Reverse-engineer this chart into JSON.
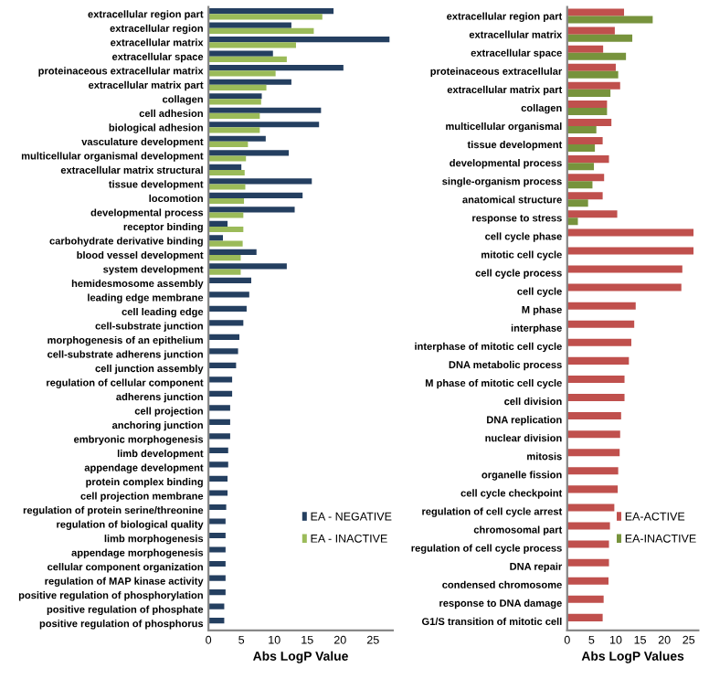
{
  "chart_data": [
    {
      "type": "bar",
      "orientation": "horizontal",
      "xlabel": "Abs LogP Value",
      "xlim": [
        0,
        28
      ],
      "xticks": [
        0,
        5,
        10,
        15,
        20,
        25
      ],
      "grid": false,
      "legend": "bottom right",
      "categories": [
        "extracellular region part",
        "extracellular region",
        "extracellular matrix",
        "extracellular space",
        "proteinaceous extracellular matrix",
        "extracellular matrix part",
        "collagen",
        "cell adhesion",
        "biological adhesion",
        "vasculature development",
        "multicellular organismal development",
        "extracellular matrix structural",
        "tissue development",
        "locomotion",
        "developmental process",
        "receptor binding",
        "carbohydrate derivative binding",
        "blood vessel development",
        "system development",
        "hemidesmosome assembly",
        "leading edge membrane",
        "cell leading edge",
        "cell-substrate junction",
        "morphogenesis of an epithelium",
        "cell-substrate adherens junction",
        "cell junction assembly",
        "regulation of cellular component",
        "adherens junction",
        "cell projection",
        "anchoring junction",
        "embryonic morphogenesis",
        "limb development",
        "appendage development",
        "protein complex binding",
        "cell projection membrane",
        "regulation of protein serine/threonine",
        "regulation of biological quality",
        "limb morphogenesis",
        "appendage morphogenesis",
        "cellular component organization",
        "regulation of MAP kinase activity",
        "positive regulation of phosphorylation",
        "positive regulation of phosphate",
        "positive regulation of phosphorus"
      ],
      "series": [
        {
          "name": "EA - NEGATIVE",
          "color": "#243f60",
          "values": [
            19.0,
            12.6,
            27.5,
            9.8,
            20.5,
            12.6,
            8.1,
            17.1,
            16.8,
            8.7,
            12.2,
            5.0,
            15.7,
            14.3,
            13.1,
            2.9,
            2.2,
            7.3,
            11.9,
            6.5,
            6.2,
            5.8,
            5.3,
            4.7,
            4.5,
            4.2,
            3.6,
            3.6,
            3.3,
            3.3,
            3.3,
            3.0,
            3.0,
            2.9,
            2.9,
            2.7,
            2.6,
            2.6,
            2.6,
            2.6,
            2.6,
            2.6,
            2.4,
            2.4
          ]
        },
        {
          "name": "EA - INACTIVE",
          "color": "#9bbb59",
          "values": [
            17.3,
            16.0,
            13.3,
            11.9,
            10.2,
            8.8,
            8.0,
            7.8,
            7.8,
            6.0,
            5.7,
            5.5,
            5.6,
            5.4,
            5.3,
            5.3,
            5.2,
            4.9,
            4.9,
            null,
            null,
            null,
            null,
            null,
            null,
            null,
            null,
            null,
            null,
            null,
            null,
            null,
            null,
            null,
            null,
            null,
            null,
            null,
            null,
            null,
            null,
            null,
            null,
            null
          ]
        }
      ]
    },
    {
      "type": "bar",
      "orientation": "horizontal",
      "xlabel": "Abs LogP Values",
      "xlim": [
        0,
        27
      ],
      "xticks": [
        0,
        5,
        10,
        15,
        20,
        25
      ],
      "grid": false,
      "legend": "bottom right",
      "categories": [
        "extracellular region part",
        "extracellular matrix",
        "extracellular space",
        "proteinaceous extracellular",
        "extracellular matrix part",
        "collagen",
        "multicellular organismal",
        "tissue development",
        "developmental process",
        "single-organism process",
        "anatomical structure",
        "response to stress",
        "cell cycle phase",
        "mitotic cell cycle",
        "cell cycle process",
        "cell cycle",
        "M phase",
        "interphase",
        "interphase of mitotic cell cycle",
        "DNA metabolic process",
        "M phase of mitotic cell cycle",
        "cell division",
        "DNA replication",
        "nuclear division",
        "mitosis",
        "organelle fission",
        "cell cycle checkpoint",
        "regulation of cell cycle arrest",
        "chromosomal part",
        "regulation of cell cycle process",
        "DNA repair",
        "condensed chromosome",
        "response to DNA damage",
        "G1/S transition of mitotic cell"
      ],
      "series": [
        {
          "name": "EA-ACTIVE",
          "color": "#c0504d",
          "values": [
            11.7,
            9.8,
            7.4,
            10.0,
            10.9,
            8.2,
            9.1,
            7.3,
            8.6,
            7.6,
            7.3,
            10.3,
            26.0,
            26.0,
            23.7,
            23.5,
            14.1,
            13.8,
            13.2,
            12.7,
            11.8,
            11.8,
            11.1,
            10.9,
            10.8,
            10.5,
            10.4,
            9.7,
            8.8,
            8.6,
            8.6,
            8.5,
            7.5,
            7.3
          ]
        },
        {
          "name": "EA-INACTIVE",
          "color": "#77933c",
          "values": [
            17.6,
            13.4,
            12.1,
            10.5,
            8.9,
            8.2,
            6.0,
            5.7,
            5.5,
            5.2,
            4.3,
            2.2,
            null,
            null,
            null,
            null,
            null,
            null,
            null,
            null,
            null,
            null,
            null,
            null,
            null,
            null,
            null,
            null,
            null,
            null,
            null,
            null,
            null,
            null
          ]
        }
      ]
    }
  ]
}
